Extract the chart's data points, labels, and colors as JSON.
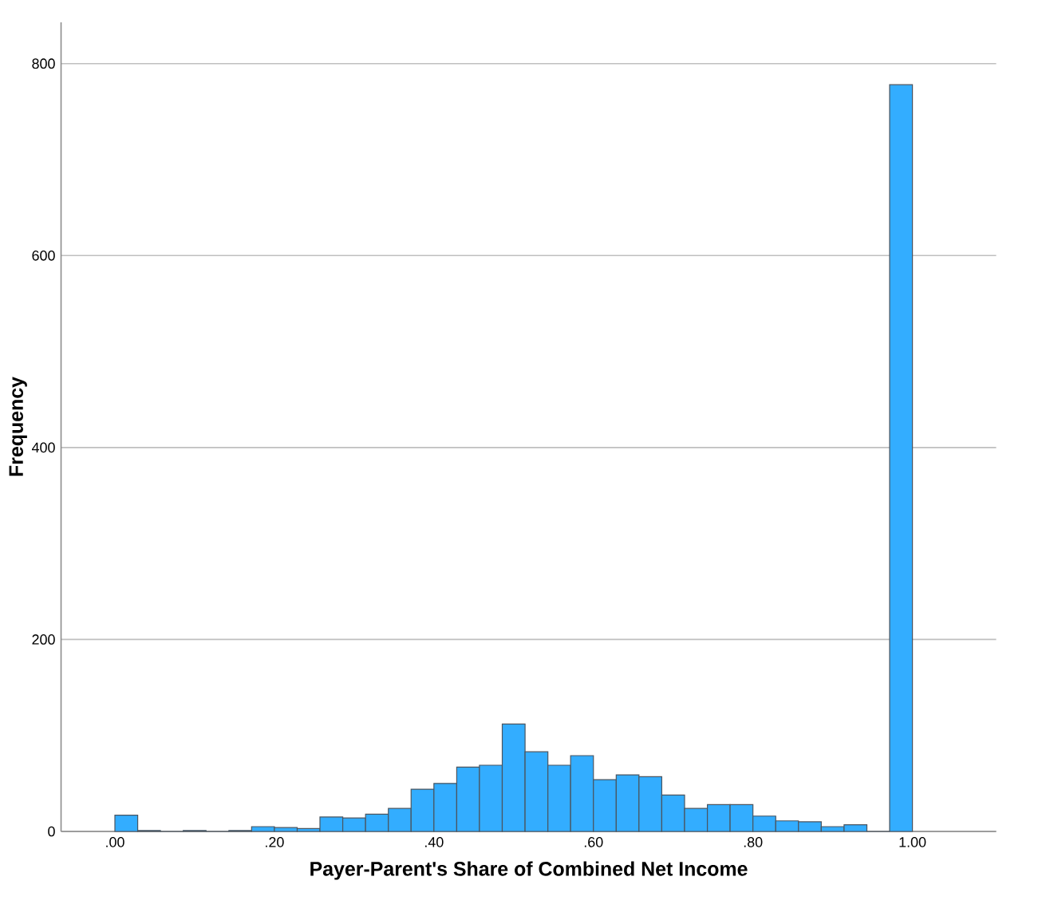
{
  "chart_data": {
    "type": "histogram",
    "xlabel": "Payer-Parent's Share of Combined Net Income",
    "ylabel": "Frequency",
    "bins": [
      0,
      0.0286,
      0.0571,
      0.0857,
      0.1143,
      0.1429,
      0.1714,
      0.2,
      0.2286,
      0.2571,
      0.2857,
      0.3143,
      0.3429,
      0.3714,
      0.4,
      0.4286,
      0.4571,
      0.4857,
      0.5143,
      0.5429,
      0.5714,
      0.6,
      0.6286,
      0.6571,
      0.6857,
      0.7143,
      0.7429,
      0.7714,
      0.8,
      0.8286,
      0.8571,
      0.8857,
      0.9143,
      0.9429,
      0.9714,
      1
    ],
    "values": [
      17,
      1,
      0,
      1,
      0,
      1,
      5,
      4,
      3,
      15,
      14,
      18,
      24,
      44,
      50,
      67,
      69,
      112,
      83,
      69,
      79,
      54,
      59,
      57,
      38,
      24,
      28,
      28,
      16,
      11,
      10,
      5,
      7,
      0,
      778
    ],
    "color": "#33adff",
    "xlim": [
      -0.0675,
      1.105
    ],
    "ylim": [
      0,
      843
    ],
    "xticks": [
      {
        "value": 0,
        "label": ".00"
      },
      {
        "value": 0.2,
        "label": ".20"
      },
      {
        "value": 0.4,
        "label": ".40"
      },
      {
        "value": 0.6,
        "label": ".60"
      },
      {
        "value": 0.8,
        "label": ".80"
      },
      {
        "value": 1,
        "label": "1.00"
      }
    ],
    "yticks": [
      0,
      200,
      400,
      600,
      800
    ],
    "grid": "y"
  }
}
